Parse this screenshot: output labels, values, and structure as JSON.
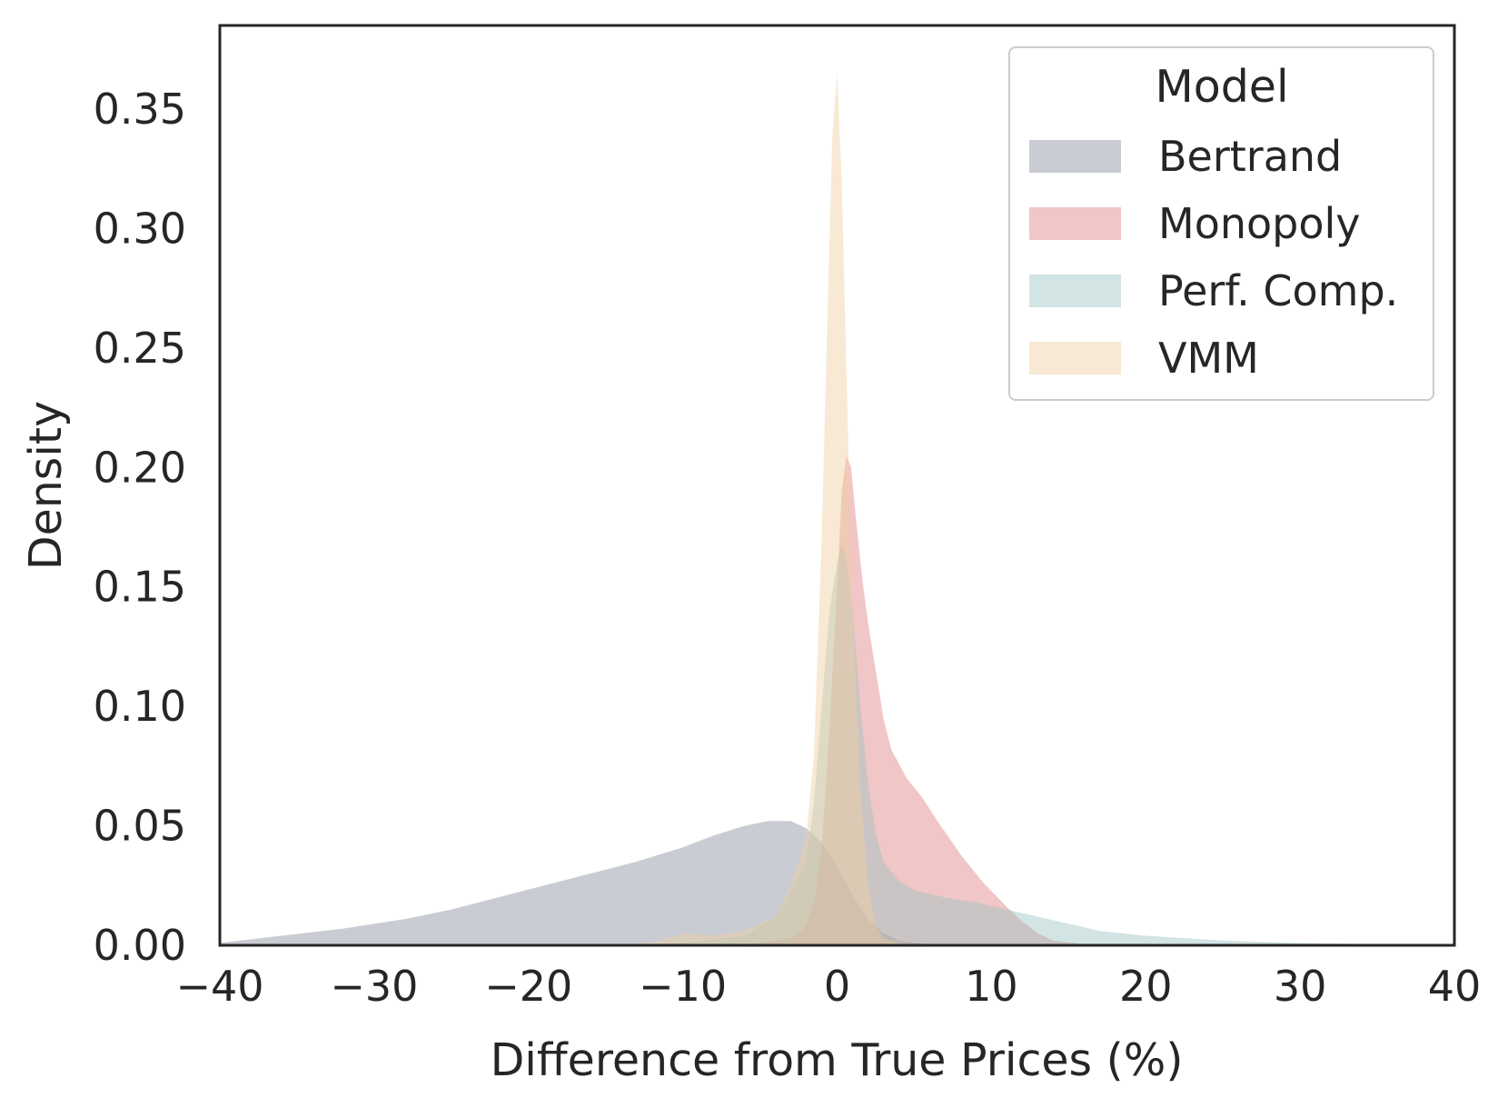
{
  "chart_data": {
    "type": "area",
    "title": "",
    "xlabel": "Difference from True Prices (%)",
    "ylabel": "Density",
    "xlim": [
      -40,
      40
    ],
    "ylim": [
      0,
      0.385
    ],
    "xticks": [
      -40,
      -30,
      -20,
      -10,
      0,
      10,
      20,
      30,
      40
    ],
    "xtick_labels": [
      "−40",
      "−30",
      "−20",
      "−10",
      "0",
      "10",
      "20",
      "30",
      "40"
    ],
    "yticks": [
      0.0,
      0.05,
      0.1,
      0.15,
      0.2,
      0.25,
      0.3,
      0.35
    ],
    "ytick_labels": [
      "0.00",
      "0.05",
      "0.10",
      "0.15",
      "0.20",
      "0.25",
      "0.30",
      "0.35"
    ],
    "grid": false,
    "legend": {
      "title": "Model",
      "position": "top-right"
    },
    "series": [
      {
        "name": "Bertrand",
        "color": "#8a8f9e",
        "x": [
          -40,
          -36,
          -32,
          -28,
          -25,
          -22,
          -19,
          -16,
          -13,
          -10,
          -8,
          -6,
          -4.5,
          -3,
          -2,
          -1,
          0,
          1,
          2,
          3,
          4,
          5,
          6,
          8,
          10
        ],
        "y": [
          0.001,
          0.004,
          0.007,
          0.011,
          0.015,
          0.02,
          0.025,
          0.03,
          0.035,
          0.041,
          0.046,
          0.05,
          0.052,
          0.052,
          0.049,
          0.043,
          0.033,
          0.021,
          0.011,
          0.005,
          0.002,
          0.001,
          0.0005,
          0.0001,
          0.0
        ]
      },
      {
        "name": "Monopoly",
        "color": "#dd8080",
        "x": [
          -12,
          -8,
          -5,
          -3,
          -2,
          -1.5,
          -1,
          -0.5,
          0,
          0.3,
          0.6,
          0.9,
          1.2,
          1.6,
          2,
          2.5,
          3,
          3.5,
          4.5,
          5.5,
          6.5,
          8,
          9.5,
          11,
          12,
          13,
          14,
          16,
          18,
          20
        ],
        "y": [
          0.0,
          0.0,
          0.001,
          0.003,
          0.008,
          0.018,
          0.04,
          0.09,
          0.15,
          0.19,
          0.205,
          0.2,
          0.18,
          0.155,
          0.135,
          0.115,
          0.095,
          0.082,
          0.07,
          0.062,
          0.052,
          0.038,
          0.026,
          0.016,
          0.01,
          0.005,
          0.002,
          0.0005,
          0.0001,
          0.0
        ]
      },
      {
        "name": "Perf. Comp.",
        "color": "#9cc4c0",
        "x": [
          -15,
          -10,
          -6,
          -4,
          -3,
          -2,
          -1.5,
          -1,
          -0.5,
          0,
          0.3,
          0.6,
          1,
          1.5,
          2,
          2.5,
          3,
          4,
          5,
          7,
          9,
          11,
          13,
          15,
          17,
          20,
          25,
          30,
          35,
          40
        ],
        "y": [
          0.0,
          0.001,
          0.004,
          0.012,
          0.022,
          0.035,
          0.06,
          0.1,
          0.14,
          0.16,
          0.168,
          0.162,
          0.14,
          0.1,
          0.068,
          0.047,
          0.035,
          0.027,
          0.023,
          0.02,
          0.018,
          0.015,
          0.012,
          0.009,
          0.006,
          0.004,
          0.002,
          0.001,
          0.0004,
          0.0
        ]
      },
      {
        "name": "VMM",
        "color": "#f0cfa0",
        "x": [
          -15,
          -12,
          -10,
          -8,
          -6,
          -4,
          -3,
          -2,
          -1.5,
          -1,
          -0.6,
          -0.3,
          0,
          0.3,
          0.6,
          1,
          1.5,
          2,
          2.5,
          3,
          4,
          5,
          6,
          8
        ],
        "y": [
          0.0,
          0.001,
          0.005,
          0.004,
          0.006,
          0.012,
          0.025,
          0.045,
          0.08,
          0.17,
          0.27,
          0.34,
          0.365,
          0.32,
          0.24,
          0.14,
          0.065,
          0.025,
          0.008,
          0.003,
          0.001,
          0.0005,
          0.0001,
          0.0
        ]
      }
    ]
  }
}
